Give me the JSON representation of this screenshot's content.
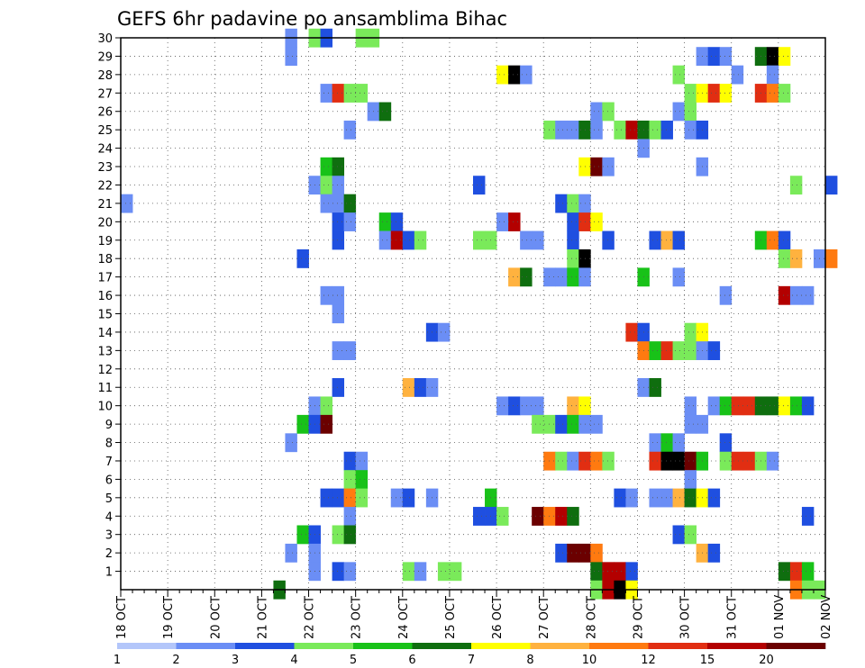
{
  "chart_data": {
    "type": "heatmap",
    "title": "GEFS 6hr padavine po ansamblima Bihac",
    "xlabel": "",
    "ylabel": "",
    "x_ticks": [
      "18 OCT",
      "19 OCT",
      "20 OCT",
      "21 OCT",
      "22 OCT",
      "23 OCT",
      "24 OCT",
      "25 OCT",
      "26 OCT",
      "27 OCT",
      "28 OCT",
      "29 OCT",
      "30 OCT",
      "31 OCT",
      "01 NOV",
      "02 NOV"
    ],
    "y_ticks": [
      "1",
      "2",
      "3",
      "4",
      "5",
      "6",
      "7",
      "8",
      "9",
      "10",
      "11",
      "12",
      "13",
      "14",
      "15",
      "16",
      "17",
      "18",
      "19",
      "20",
      "21",
      "22",
      "23",
      "24",
      "25",
      "26",
      "27",
      "28",
      "29",
      "30"
    ],
    "x_range_steps": [
      0,
      60
    ],
    "y_range": [
      0,
      30
    ],
    "time_step": "6hr",
    "grid": true,
    "colorbar": {
      "position": "bottom",
      "labels": [
        "1",
        "2",
        "3",
        "4",
        "5",
        "6",
        "7",
        "8",
        "10",
        "12",
        "15",
        "20"
      ],
      "colors": [
        "#b3c6fa",
        "#6b8ef5",
        "#1f4fe0",
        "#7aea5a",
        "#18c218",
        "#0f6e0f",
        "#ffff00",
        "#ffb23f",
        "#ff7a10",
        "#e12e12",
        "#b30000",
        "#6b0000"
      ]
    },
    "cells_columns": "step,member,level",
    "cells": [
      [
        0,
        21,
        1
      ],
      [
        14,
        29,
        1
      ],
      [
        14,
        30,
        1
      ],
      [
        16,
        30,
        3
      ],
      [
        17,
        30,
        2
      ],
      [
        20,
        30,
        3
      ],
      [
        21,
        30,
        3
      ],
      [
        49,
        29,
        1
      ],
      [
        50,
        29,
        2
      ],
      [
        51,
        29,
        1
      ],
      [
        54,
        29,
        5
      ],
      [
        55,
        29,
        12
      ],
      [
        56,
        29,
        6
      ],
      [
        32,
        28,
        6
      ],
      [
        33,
        28,
        12
      ],
      [
        34,
        28,
        1
      ],
      [
        47,
        28,
        3
      ],
      [
        52,
        28,
        1
      ],
      [
        55,
        28,
        1
      ],
      [
        17,
        27,
        1
      ],
      [
        18,
        27,
        9
      ],
      [
        19,
        27,
        3
      ],
      [
        20,
        27,
        3
      ],
      [
        48,
        27,
        3
      ],
      [
        49,
        27,
        6
      ],
      [
        50,
        27,
        9
      ],
      [
        51,
        27,
        6
      ],
      [
        54,
        27,
        9
      ],
      [
        55,
        27,
        8
      ],
      [
        56,
        27,
        3
      ],
      [
        21,
        26,
        1
      ],
      [
        22,
        26,
        5
      ],
      [
        40,
        26,
        1
      ],
      [
        41,
        26,
        3
      ],
      [
        47,
        26,
        1
      ],
      [
        48,
        26,
        3
      ],
      [
        19,
        25,
        1
      ],
      [
        36,
        25,
        3
      ],
      [
        37,
        25,
        1
      ],
      [
        38,
        25,
        1
      ],
      [
        39,
        25,
        5
      ],
      [
        40,
        25,
        1
      ],
      [
        42,
        25,
        3
      ],
      [
        43,
        25,
        10
      ],
      [
        44,
        25,
        5
      ],
      [
        45,
        25,
        3
      ],
      [
        46,
        25,
        2
      ],
      [
        48,
        25,
        1
      ],
      [
        49,
        25,
        2
      ],
      [
        44,
        24,
        1
      ],
      [
        39,
        23,
        6
      ],
      [
        40,
        23,
        11
      ],
      [
        41,
        23,
        1
      ],
      [
        49,
        23,
        1
      ],
      [
        17,
        23,
        4
      ],
      [
        18,
        23,
        5
      ],
      [
        16,
        22,
        1
      ],
      [
        17,
        22,
        3
      ],
      [
        18,
        22,
        1
      ],
      [
        30,
        22,
        2
      ],
      [
        57,
        22,
        3
      ],
      [
        60,
        22,
        2
      ],
      [
        17,
        21,
        1
      ],
      [
        18,
        21,
        1
      ],
      [
        19,
        21,
        5
      ],
      [
        37,
        21,
        2
      ],
      [
        38,
        21,
        3
      ],
      [
        39,
        21,
        1
      ],
      [
        18,
        20,
        2
      ],
      [
        19,
        20,
        1
      ],
      [
        22,
        20,
        4
      ],
      [
        23,
        20,
        2
      ],
      [
        32,
        20,
        1
      ],
      [
        33,
        20,
        10
      ],
      [
        38,
        20,
        2
      ],
      [
        39,
        20,
        9
      ],
      [
        40,
        20,
        6
      ],
      [
        18,
        19,
        2
      ],
      [
        22,
        19,
        1
      ],
      [
        23,
        19,
        10
      ],
      [
        24,
        19,
        2
      ],
      [
        25,
        19,
        3
      ],
      [
        30,
        19,
        3
      ],
      [
        31,
        19,
        3
      ],
      [
        34,
        19,
        1
      ],
      [
        35,
        19,
        1
      ],
      [
        38,
        19,
        2
      ],
      [
        41,
        19,
        2
      ],
      [
        45,
        19,
        2
      ],
      [
        46,
        19,
        7
      ],
      [
        47,
        19,
        2
      ],
      [
        54,
        19,
        4
      ],
      [
        55,
        19,
        8
      ],
      [
        56,
        19,
        2
      ],
      [
        15,
        18,
        2
      ],
      [
        38,
        18,
        3
      ],
      [
        39,
        18,
        12
      ],
      [
        56,
        18,
        3
      ],
      [
        57,
        18,
        7
      ],
      [
        59,
        18,
        1
      ],
      [
        60,
        18,
        8
      ],
      [
        33,
        17,
        7
      ],
      [
        34,
        17,
        5
      ],
      [
        36,
        17,
        1
      ],
      [
        37,
        17,
        1
      ],
      [
        38,
        17,
        4
      ],
      [
        39,
        17,
        1
      ],
      [
        44,
        17,
        4
      ],
      [
        47,
        17,
        1
      ],
      [
        17,
        16,
        1
      ],
      [
        18,
        16,
        1
      ],
      [
        51,
        16,
        1
      ],
      [
        56,
        16,
        10
      ],
      [
        57,
        16,
        1
      ],
      [
        58,
        16,
        1
      ],
      [
        18,
        15,
        1
      ],
      [
        26,
        14,
        2
      ],
      [
        27,
        14,
        1
      ],
      [
        43,
        14,
        9
      ],
      [
        44,
        14,
        2
      ],
      [
        48,
        14,
        3
      ],
      [
        49,
        14,
        6
      ],
      [
        18,
        13,
        1
      ],
      [
        19,
        13,
        1
      ],
      [
        44,
        13,
        8
      ],
      [
        45,
        13,
        4
      ],
      [
        46,
        13,
        9
      ],
      [
        47,
        13,
        3
      ],
      [
        48,
        13,
        3
      ],
      [
        49,
        13,
        1
      ],
      [
        50,
        13,
        2
      ],
      [
        18,
        11,
        2
      ],
      [
        24,
        11,
        7
      ],
      [
        25,
        11,
        2
      ],
      [
        26,
        11,
        1
      ],
      [
        44,
        11,
        1
      ],
      [
        45,
        11,
        5
      ],
      [
        16,
        10,
        1
      ],
      [
        17,
        10,
        3
      ],
      [
        32,
        10,
        1
      ],
      [
        33,
        10,
        2
      ],
      [
        34,
        10,
        1
      ],
      [
        35,
        10,
        1
      ],
      [
        38,
        10,
        7
      ],
      [
        39,
        10,
        6
      ],
      [
        48,
        10,
        1
      ],
      [
        50,
        10,
        1
      ],
      [
        51,
        10,
        4
      ],
      [
        52,
        10,
        9
      ],
      [
        53,
        10,
        9
      ],
      [
        54,
        10,
        5
      ],
      [
        55,
        10,
        5
      ],
      [
        56,
        10,
        6
      ],
      [
        57,
        10,
        4
      ],
      [
        58,
        10,
        2
      ],
      [
        15,
        9,
        4
      ],
      [
        16,
        9,
        2
      ],
      [
        17,
        9,
        11
      ],
      [
        35,
        9,
        3
      ],
      [
        36,
        9,
        3
      ],
      [
        37,
        9,
        2
      ],
      [
        38,
        9,
        4
      ],
      [
        39,
        9,
        1
      ],
      [
        40,
        9,
        1
      ],
      [
        48,
        9,
        1
      ],
      [
        49,
        9,
        1
      ],
      [
        14,
        8,
        1
      ],
      [
        45,
        8,
        1
      ],
      [
        46,
        8,
        4
      ],
      [
        47,
        8,
        1
      ],
      [
        51,
        8,
        2
      ],
      [
        19,
        7,
        2
      ],
      [
        20,
        7,
        1
      ],
      [
        36,
        7,
        8
      ],
      [
        37,
        7,
        3
      ],
      [
        38,
        7,
        1
      ],
      [
        39,
        7,
        9
      ],
      [
        40,
        7,
        8
      ],
      [
        41,
        7,
        3
      ],
      [
        45,
        7,
        9
      ],
      [
        46,
        7,
        12
      ],
      [
        47,
        7,
        12
      ],
      [
        48,
        7,
        11
      ],
      [
        49,
        7,
        4
      ],
      [
        51,
        7,
        3
      ],
      [
        52,
        7,
        9
      ],
      [
        53,
        7,
        9
      ],
      [
        54,
        7,
        3
      ],
      [
        55,
        7,
        1
      ],
      [
        19,
        6,
        3
      ],
      [
        20,
        6,
        4
      ],
      [
        48,
        6,
        1
      ],
      [
        17,
        5,
        2
      ],
      [
        18,
        5,
        2
      ],
      [
        19,
        5,
        8
      ],
      [
        20,
        5,
        3
      ],
      [
        23,
        5,
        1
      ],
      [
        24,
        5,
        2
      ],
      [
        26,
        5,
        1
      ],
      [
        31,
        5,
        4
      ],
      [
        42,
        5,
        2
      ],
      [
        43,
        5,
        1
      ],
      [
        45,
        5,
        1
      ],
      [
        46,
        5,
        1
      ],
      [
        47,
        5,
        7
      ],
      [
        48,
        5,
        5
      ],
      [
        49,
        5,
        6
      ],
      [
        50,
        5,
        2
      ],
      [
        19,
        4,
        1
      ],
      [
        30,
        4,
        2
      ],
      [
        31,
        4,
        2
      ],
      [
        32,
        4,
        3
      ],
      [
        35,
        4,
        11
      ],
      [
        36,
        4,
        8
      ],
      [
        37,
        4,
        10
      ],
      [
        38,
        4,
        5
      ],
      [
        58,
        4,
        2
      ],
      [
        15,
        3,
        4
      ],
      [
        16,
        3,
        2
      ],
      [
        18,
        3,
        3
      ],
      [
        19,
        3,
        5
      ],
      [
        47,
        3,
        2
      ],
      [
        48,
        3,
        3
      ],
      [
        14,
        2,
        1
      ],
      [
        16,
        2,
        1
      ],
      [
        37,
        2,
        2
      ],
      [
        38,
        2,
        11
      ],
      [
        39,
        2,
        11
      ],
      [
        40,
        2,
        8
      ],
      [
        49,
        2,
        7
      ],
      [
        50,
        2,
        2
      ],
      [
        16,
        1,
        1
      ],
      [
        18,
        1,
        2
      ],
      [
        19,
        1,
        1
      ],
      [
        24,
        1,
        3
      ],
      [
        25,
        1,
        1
      ],
      [
        27,
        1,
        3
      ],
      [
        28,
        1,
        3
      ],
      [
        40,
        1,
        5
      ],
      [
        41,
        1,
        10
      ],
      [
        42,
        1,
        10
      ],
      [
        43,
        1,
        2
      ],
      [
        56,
        1,
        5
      ],
      [
        57,
        1,
        9
      ],
      [
        58,
        1,
        4
      ],
      [
        13,
        0,
        5
      ],
      [
        40,
        0,
        3
      ],
      [
        41,
        0,
        10
      ],
      [
        42,
        0,
        12
      ],
      [
        43,
        0,
        6
      ],
      [
        57,
        0,
        8
      ],
      [
        58,
        0,
        3
      ],
      [
        59,
        0,
        3
      ]
    ]
  }
}
